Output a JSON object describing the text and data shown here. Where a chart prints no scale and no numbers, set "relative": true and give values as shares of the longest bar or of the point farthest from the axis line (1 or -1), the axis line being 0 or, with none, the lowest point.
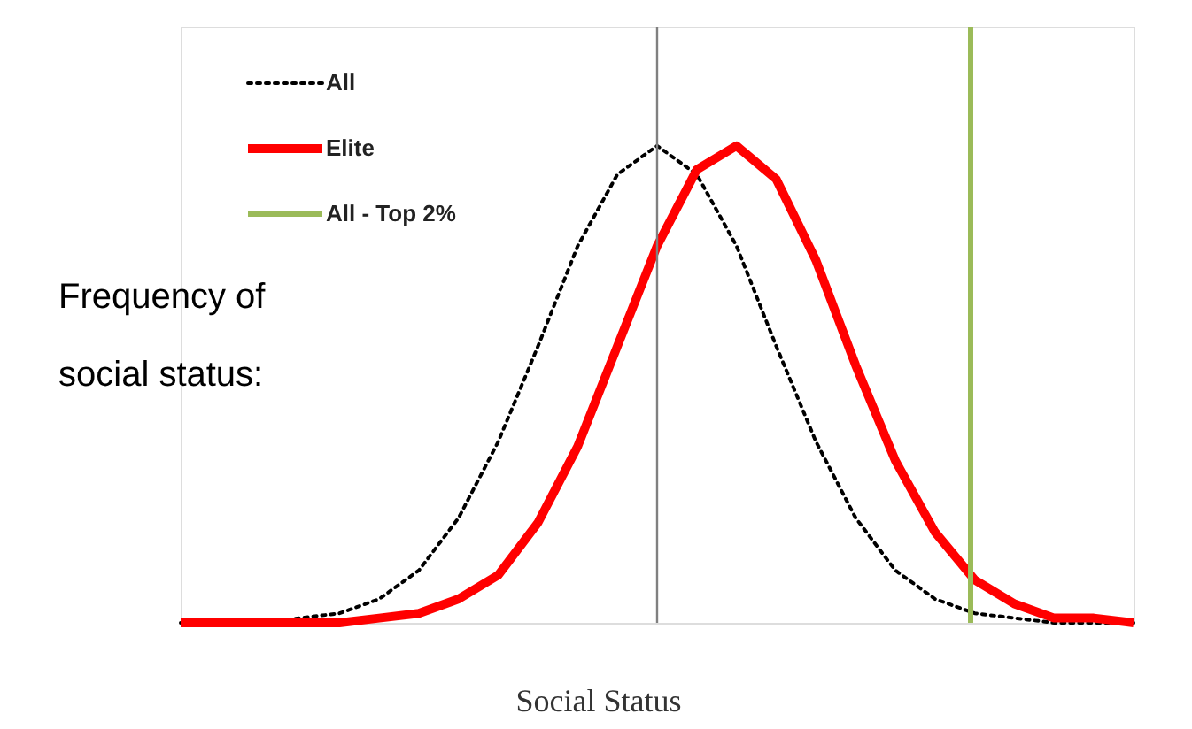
{
  "chart_data": {
    "type": "line",
    "relative": true,
    "xlabel": "Social Status",
    "ylabel": "Frequency of social status:",
    "legend": "top left",
    "categories": [
      null,
      null,
      null,
      null,
      null,
      null,
      null,
      null,
      null,
      null,
      null,
      null,
      null,
      null,
      null,
      null,
      null,
      null,
      null,
      null,
      null,
      null,
      null,
      null,
      null
    ],
    "series": [
      {
        "name": "All",
        "color": "#000000",
        "line_style": "dotted",
        "values": [
          0,
          0,
          0,
          0.01,
          0.02,
          0.05,
          0.11,
          0.22,
          0.38,
          0.58,
          0.79,
          0.94,
          1,
          0.94,
          0.79,
          0.58,
          0.38,
          0.22,
          0.11,
          0.05,
          0.02,
          0.01,
          0,
          0,
          0
        ]
      },
      {
        "name": "Elite",
        "color": "#ff0000",
        "line_style": "solid",
        "values": [
          0,
          0,
          0,
          0,
          0,
          0.01,
          0.02,
          0.05,
          0.1,
          0.21,
          0.37,
          0.58,
          0.79,
          0.95,
          1,
          0.93,
          0.76,
          0.54,
          0.34,
          0.19,
          0.09,
          0.04,
          0.01,
          0.01,
          0
        ]
      }
    ],
    "annotations": [
      "All - Top 2%"
    ]
  }
}
